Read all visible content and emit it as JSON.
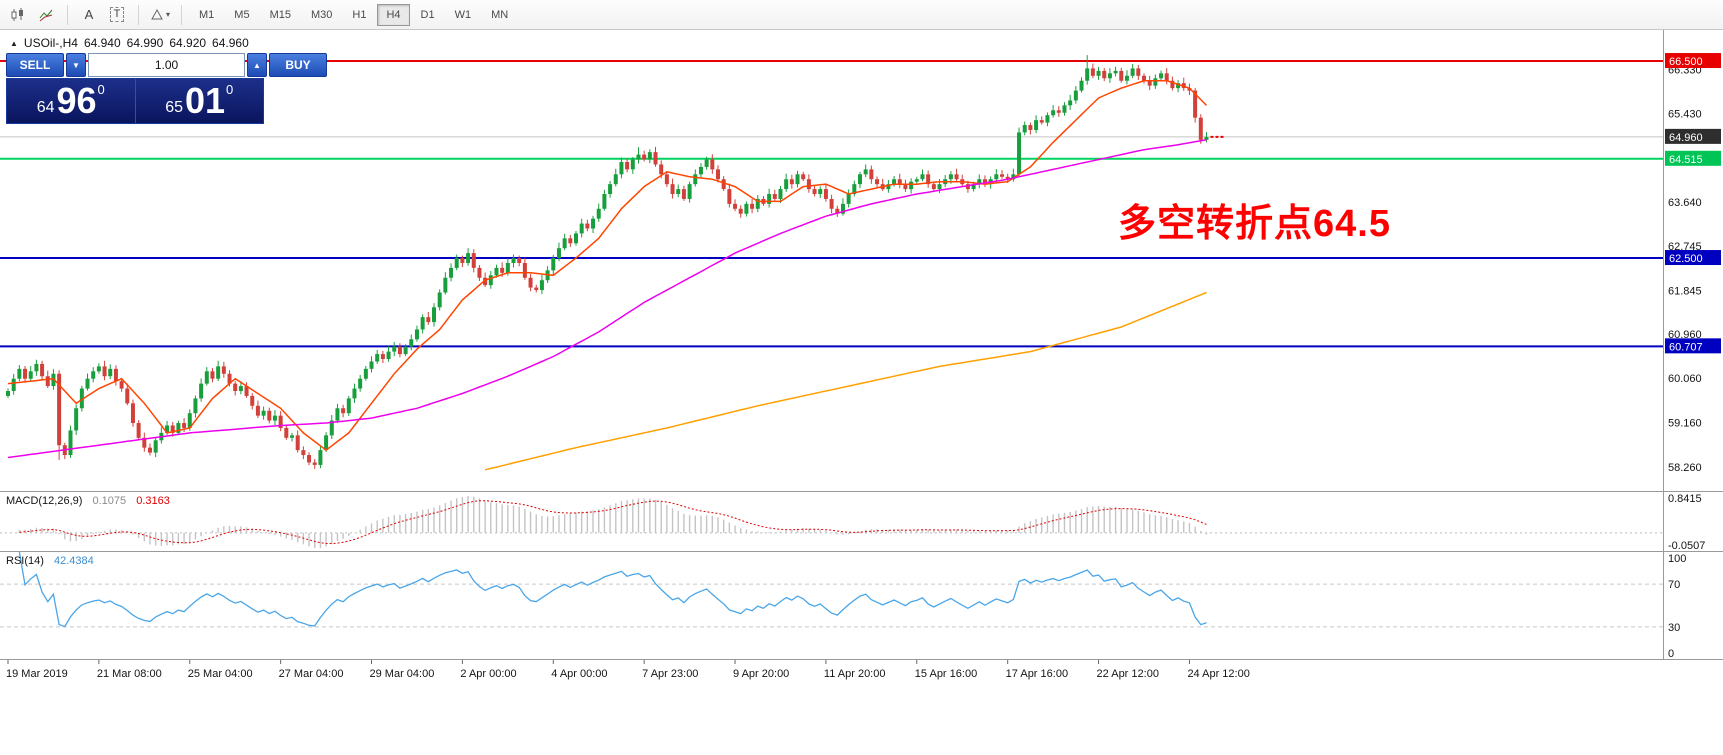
{
  "icons": {
    "collapse_arrow": "▲",
    "caret_up": "▲",
    "caret_down": "▼",
    "dropdown_caret": "▾"
  },
  "toolbar": {
    "timeframes": [
      "M1",
      "M5",
      "M15",
      "M30",
      "H1",
      "H4",
      "D1",
      "W1",
      "MN"
    ],
    "active_timeframe": "H4",
    "text_tool_label": "A",
    "label_tool_label": "T"
  },
  "symbol_bar": {
    "symbol_timeframe": "USOil-,H4",
    "open": "64.940",
    "high": "64.990",
    "low": "64.920",
    "close": "64.960"
  },
  "trade_panel": {
    "sell_label": "SELL",
    "buy_label": "BUY",
    "volume": "1.00",
    "sell_price": {
      "small": "64",
      "big": "96",
      "sup": "0"
    },
    "buy_price": {
      "small": "65",
      "big": "01",
      "sup": "0"
    }
  },
  "annotation": {
    "text": "多空转折点64.5",
    "color": "#fe0000"
  },
  "macd_header": {
    "label": "MACD(12,26,9)",
    "value_main": "0.1075",
    "value_signal": "0.3163"
  },
  "rsi_header": {
    "label": "RSI(14)",
    "value": "42.4384"
  },
  "chart_data": {
    "type": "candlestick",
    "symbol": "USOil-",
    "timeframe": "H4",
    "up_color": "#189e3c",
    "down_color": "#d2403a",
    "price_axis": {
      "view_max": 67.13,
      "view_min": 57.77,
      "labels": [
        "66.330",
        "65.430",
        "64.535",
        "63.640",
        "62.745",
        "61.845",
        "60.960",
        "60.060",
        "59.160",
        "58.260"
      ]
    },
    "levels": [
      {
        "price": 66.5,
        "label": "66.500",
        "color": "#e60000",
        "badge": "#e60000",
        "style": "solid",
        "width": 2
      },
      {
        "price": 64.96,
        "label": "64.960",
        "color": "#c4c4c4",
        "badge": "#2e2e2e",
        "style": "solid",
        "width": 1,
        "role": "current-price"
      },
      {
        "price": 64.515,
        "label": "64.515",
        "color": "#00d45e",
        "badge": "#00c455",
        "style": "solid",
        "width": 2
      },
      {
        "price": 62.5,
        "label": "62.500",
        "color": "#0000c0",
        "badge": "#0000c0",
        "style": "solid",
        "width": 2
      },
      {
        "price": 60.707,
        "label": "60.707",
        "color": "#0000c0",
        "badge": "#0000c0",
        "style": "solid",
        "width": 2
      }
    ],
    "time_labels": [
      {
        "bar": 0,
        "text": "19 Mar 2019"
      },
      {
        "bar": 16,
        "text": "21 Mar 08:00"
      },
      {
        "bar": 32,
        "text": "25 Mar 04:00"
      },
      {
        "bar": 48,
        "text": "27 Mar 04:00"
      },
      {
        "bar": 64,
        "text": "29 Mar 04:00"
      },
      {
        "bar": 80,
        "text": "2 Apr 00:00"
      },
      {
        "bar": 96,
        "text": "4 Apr 00:00"
      },
      {
        "bar": 112,
        "text": "7 Apr 23:00"
      },
      {
        "bar": 128,
        "text": "9 Apr 20:00"
      },
      {
        "bar": 144,
        "text": "11 Apr 20:00"
      },
      {
        "bar": 160,
        "text": "15 Apr 16:00"
      },
      {
        "bar": 176,
        "text": "17 Apr 16:00"
      },
      {
        "bar": 192,
        "text": "22 Apr 12:00"
      },
      {
        "bar": 208,
        "text": "24 Apr 12:00"
      }
    ],
    "open_first": 59.7,
    "closes": [
      59.8,
      60.05,
      60.25,
      60.05,
      60.2,
      60.35,
      60.1,
      59.9,
      60.15,
      58.7,
      58.5,
      59.0,
      59.45,
      59.85,
      60.05,
      60.2,
      60.3,
      60.1,
      60.25,
      60.0,
      59.85,
      59.55,
      59.15,
      58.85,
      58.65,
      58.55,
      58.8,
      58.95,
      59.1,
      58.95,
      59.15,
      59.05,
      59.35,
      59.65,
      59.95,
      60.2,
      60.05,
      60.3,
      60.15,
      59.95,
      59.8,
      59.9,
      59.7,
      59.5,
      59.3,
      59.4,
      59.2,
      59.3,
      59.05,
      58.85,
      58.9,
      58.6,
      58.5,
      58.35,
      58.3,
      58.6,
      58.9,
      59.2,
      59.45,
      59.35,
      59.65,
      59.85,
      60.05,
      60.25,
      60.4,
      60.55,
      60.45,
      60.6,
      60.7,
      60.55,
      60.7,
      60.85,
      61.05,
      61.3,
      61.2,
      61.5,
      61.8,
      62.1,
      62.3,
      62.5,
      62.4,
      62.6,
      62.3,
      62.1,
      61.95,
      62.15,
      62.3,
      62.2,
      62.4,
      62.5,
      62.4,
      62.1,
      61.9,
      61.85,
      62.05,
      62.25,
      62.5,
      62.7,
      62.9,
      62.8,
      63.0,
      63.2,
      63.1,
      63.3,
      63.5,
      63.8,
      64.0,
      64.2,
      64.45,
      64.3,
      64.5,
      64.6,
      64.5,
      64.65,
      64.4,
      64.2,
      64.0,
      63.8,
      63.9,
      63.7,
      64.0,
      64.2,
      64.35,
      64.5,
      64.3,
      64.1,
      63.9,
      63.6,
      63.5,
      63.4,
      63.6,
      63.5,
      63.7,
      63.6,
      63.8,
      63.7,
      63.9,
      64.1,
      64.0,
      64.2,
      64.1,
      63.9,
      63.8,
      63.9,
      63.7,
      63.5,
      63.4,
      63.6,
      63.8,
      64.0,
      64.2,
      64.3,
      64.1,
      64.0,
      63.9,
      64.0,
      64.1,
      64.0,
      63.9,
      64.05,
      64.1,
      64.2,
      64.0,
      63.9,
      64.0,
      64.1,
      64.2,
      64.1,
      64.0,
      63.9,
      64.0,
      64.1,
      64.0,
      64.1,
      64.2,
      64.15,
      64.1,
      64.2,
      65.05,
      65.2,
      65.1,
      65.3,
      65.25,
      65.4,
      65.5,
      65.45,
      65.6,
      65.7,
      65.9,
      66.1,
      66.35,
      66.2,
      66.3,
      66.15,
      66.25,
      66.3,
      66.1,
      66.2,
      66.35,
      66.2,
      66.1,
      66.0,
      66.15,
      66.25,
      66.1,
      65.95,
      66.05,
      65.95,
      65.9,
      65.35,
      64.9,
      64.96
    ],
    "key_candles": {
      "9": [
        60.15,
        60.22,
        58.4,
        58.7
      ],
      "54": [
        58.35,
        58.42,
        58.22,
        58.3
      ],
      "111": [
        64.5,
        64.75,
        64.42,
        64.6
      ],
      "178": [
        64.2,
        65.15,
        64.15,
        65.05
      ],
      "190": [
        66.1,
        66.62,
        66.02,
        66.35
      ],
      "209": [
        65.9,
        65.95,
        65.25,
        65.35
      ],
      "210": [
        65.35,
        65.42,
        64.82,
        64.9
      ],
      "211": [
        64.9,
        65.06,
        64.85,
        64.96
      ]
    },
    "moving_averages": [
      {
        "name": "fast-red",
        "color": "#ff4500",
        "points": [
          [
            0,
            59.95
          ],
          [
            8,
            60.05
          ],
          [
            12,
            59.55
          ],
          [
            16,
            59.85
          ],
          [
            20,
            60.05
          ],
          [
            24,
            59.55
          ],
          [
            28,
            58.95
          ],
          [
            32,
            59.05
          ],
          [
            36,
            59.65
          ],
          [
            40,
            60.05
          ],
          [
            44,
            59.75
          ],
          [
            48,
            59.45
          ],
          [
            52,
            58.95
          ],
          [
            56,
            58.6
          ],
          [
            60,
            58.95
          ],
          [
            64,
            59.55
          ],
          [
            68,
            60.15
          ],
          [
            72,
            60.65
          ],
          [
            76,
            61.05
          ],
          [
            80,
            61.65
          ],
          [
            84,
            62.05
          ],
          [
            88,
            62.2
          ],
          [
            92,
            62.2
          ],
          [
            96,
            62.15
          ],
          [
            100,
            62.5
          ],
          [
            104,
            62.9
          ],
          [
            108,
            63.5
          ],
          [
            112,
            63.95
          ],
          [
            116,
            64.25
          ],
          [
            120,
            64.15
          ],
          [
            124,
            64.1
          ],
          [
            128,
            63.95
          ],
          [
            132,
            63.65
          ],
          [
            136,
            63.65
          ],
          [
            140,
            63.95
          ],
          [
            144,
            64.0
          ],
          [
            148,
            63.8
          ],
          [
            152,
            63.9
          ],
          [
            156,
            64.0
          ],
          [
            160,
            64.0
          ],
          [
            164,
            64.05
          ],
          [
            168,
            64.05
          ],
          [
            172,
            64.0
          ],
          [
            176,
            64.05
          ],
          [
            180,
            64.35
          ],
          [
            184,
            64.85
          ],
          [
            188,
            65.3
          ],
          [
            192,
            65.75
          ],
          [
            196,
            65.95
          ],
          [
            200,
            66.1
          ],
          [
            204,
            66.1
          ],
          [
            208,
            65.95
          ],
          [
            211,
            65.6
          ]
        ]
      },
      {
        "name": "medium-magenta",
        "color": "#ee00ee",
        "points": [
          [
            0,
            58.45
          ],
          [
            16,
            58.7
          ],
          [
            32,
            58.95
          ],
          [
            48,
            59.1
          ],
          [
            56,
            59.15
          ],
          [
            64,
            59.25
          ],
          [
            72,
            59.45
          ],
          [
            80,
            59.75
          ],
          [
            88,
            60.1
          ],
          [
            96,
            60.5
          ],
          [
            104,
            61.0
          ],
          [
            112,
            61.6
          ],
          [
            120,
            62.1
          ],
          [
            128,
            62.6
          ],
          [
            136,
            63.0
          ],
          [
            144,
            63.35
          ],
          [
            152,
            63.6
          ],
          [
            160,
            63.8
          ],
          [
            168,
            63.95
          ],
          [
            176,
            64.1
          ],
          [
            184,
            64.3
          ],
          [
            192,
            64.5
          ],
          [
            200,
            64.7
          ],
          [
            206,
            64.8
          ],
          [
            211,
            64.9
          ]
        ]
      },
      {
        "name": "slow-orange",
        "color": "#ffa000",
        "points": [
          [
            84,
            58.2
          ],
          [
            100,
            58.65
          ],
          [
            116,
            59.05
          ],
          [
            132,
            59.5
          ],
          [
            148,
            59.9
          ],
          [
            164,
            60.3
          ],
          [
            180,
            60.6
          ],
          [
            196,
            61.1
          ],
          [
            211,
            61.8
          ]
        ]
      }
    ],
    "macd": {
      "label": "MACD(12,26,9)",
      "fast": 12,
      "slow": 26,
      "signal": 9,
      "value_main": 0.1075,
      "value_signal": 0.3163,
      "axis_max_label": "0.8415",
      "axis_min_label": "-0.0507",
      "histogram_color": "#c4c4c4",
      "signal_color": "#e00000"
    },
    "rsi": {
      "label": "RSI(14)",
      "period": 14,
      "current": 42.4384,
      "levels": [
        "100",
        "70",
        "30",
        "0"
      ],
      "line_color": "#4aa6e8"
    }
  }
}
